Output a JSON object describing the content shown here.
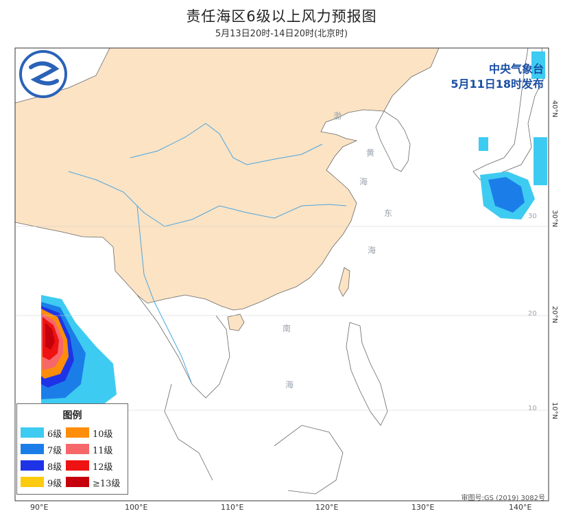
{
  "title": "责任海区6级以上风力预报图",
  "subtitle": "5月13日20时-14日20时(北京时)",
  "issuer": {
    "org": "中央气象台",
    "time": "5月11日18时发布"
  },
  "approval": "审图号:GS (2019) 3082号",
  "legend": {
    "title": "图例",
    "items": [
      {
        "label": "6级",
        "color": "#3ecbf2"
      },
      {
        "label": "10级",
        "color": "#fe8d0a"
      },
      {
        "label": "7级",
        "color": "#1b7ee8"
      },
      {
        "label": "11级",
        "color": "#f7676a"
      },
      {
        "label": "8级",
        "color": "#1f33e6"
      },
      {
        "label": "12级",
        "color": "#ef1212"
      },
      {
        "label": "9级",
        "color": "#fdcb0e"
      },
      {
        "label": "≥13级",
        "color": "#c5000c"
      }
    ]
  },
  "axes": {
    "lon": [
      "90°E",
      "100°E",
      "110°E",
      "120°E",
      "130°E",
      "140°E"
    ],
    "lat": [
      "40°N",
      "30°N",
      "20°N",
      "10°N"
    ]
  },
  "grid_labels": {
    "lat": [
      "30",
      "20",
      "10"
    ]
  },
  "sea_labels": {
    "bohai": "渤",
    "yellow": [
      "黄",
      "海"
    ],
    "east": [
      "东",
      "海"
    ],
    "south": [
      "南",
      "海"
    ]
  },
  "colors": {
    "land": "#fbe3c4",
    "sea": "#ffffff",
    "river": "#4aa5e0",
    "coast": "#555555"
  }
}
